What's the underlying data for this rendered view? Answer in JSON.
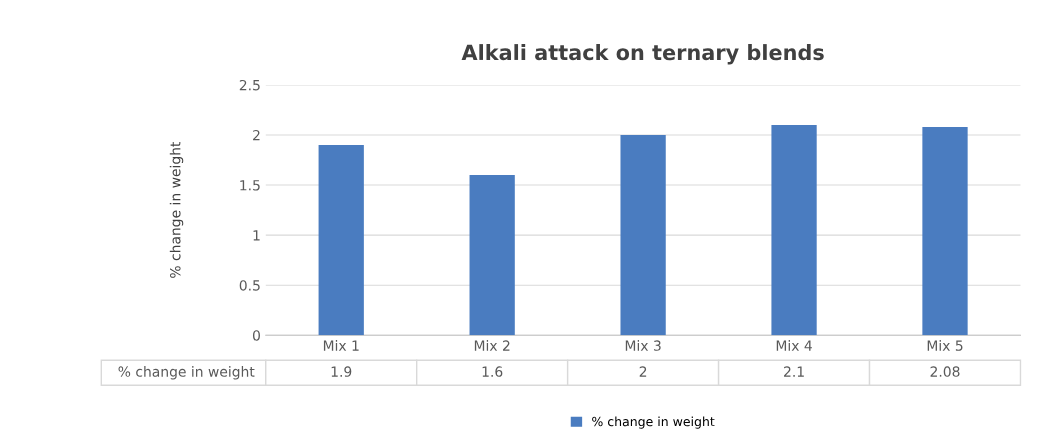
{
  "chart_data": {
    "type": "bar",
    "title": "Alkali attack on ternary blends",
    "ylabel": "% change in weight",
    "categories": [
      "Mix 1",
      "Mix 2",
      "Mix 3",
      "Mix 4",
      "Mix 5"
    ],
    "series": [
      {
        "name": "% change in weight",
        "color": "#4a7cc0",
        "values": [
          1.9,
          1.6,
          2,
          2.1,
          2.08
        ]
      }
    ],
    "ylim": [
      0,
      2.5
    ],
    "yticks": [
      0,
      0.5,
      1,
      1.5,
      2,
      2.5
    ],
    "grid": "y",
    "legend": "bottom",
    "data_labels": true
  }
}
